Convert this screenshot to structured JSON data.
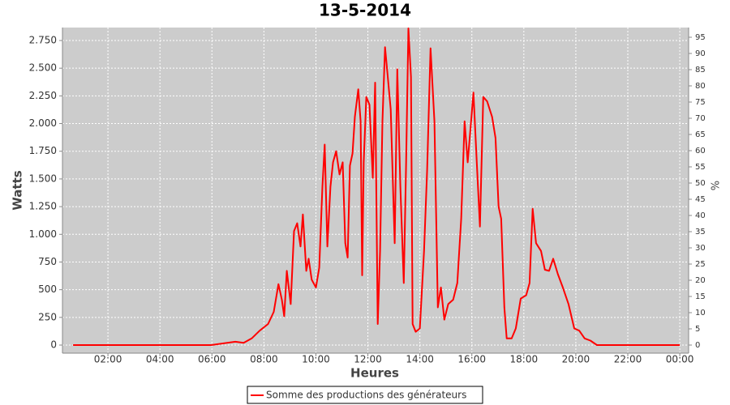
{
  "chart_data": {
    "type": "line",
    "title": "13-5-2014",
    "x_label": "Heures",
    "y_label": "Watts",
    "y2_label": "%",
    "x": [
      0.66,
      5.97,
      6.9,
      7.22,
      7.53,
      7.84,
      8.16,
      8.38,
      8.56,
      8.69,
      8.78,
      8.88,
      9.03,
      9.16,
      9.28,
      9.41,
      9.5,
      9.63,
      9.72,
      9.84,
      10.0,
      10.13,
      10.25,
      10.34,
      10.44,
      10.56,
      10.66,
      10.78,
      10.91,
      11.03,
      11.13,
      11.22,
      11.31,
      11.41,
      11.5,
      11.63,
      11.72,
      11.78,
      11.84,
      11.94,
      12.06,
      12.19,
      12.28,
      12.38,
      12.47,
      12.56,
      12.66,
      12.75,
      12.88,
      13.03,
      13.13,
      13.25,
      13.38,
      13.47,
      13.56,
      13.66,
      13.72,
      13.84,
      14.0,
      14.16,
      14.28,
      14.41,
      14.56,
      14.69,
      14.81,
      14.94,
      15.09,
      15.28,
      15.44,
      15.59,
      15.72,
      15.84,
      15.97,
      16.06,
      16.19,
      16.31,
      16.44,
      16.59,
      16.78,
      16.91,
      17.03,
      17.13,
      17.25,
      17.34,
      17.53,
      17.69,
      17.88,
      18.09,
      18.22,
      18.34,
      18.47,
      18.66,
      18.81,
      18.97,
      19.13,
      19.31,
      19.5,
      19.72,
      19.94,
      20.13,
      20.34,
      20.56,
      20.81,
      24.0
    ],
    "series": [
      {
        "name": "Somme des productions des  générateurs",
        "color": "#ff0000",
        "values": [
          0,
          0,
          30,
          20,
          60,
          130,
          190,
          300,
          550,
          410,
          260,
          670,
          370,
          1030,
          1100,
          890,
          1180,
          670,
          780,
          590,
          520,
          700,
          1430,
          1810,
          890,
          1430,
          1650,
          1750,
          1540,
          1650,
          920,
          790,
          1620,
          1730,
          2060,
          2310,
          2020,
          630,
          1650,
          2240,
          2170,
          1510,
          2370,
          190,
          850,
          2020,
          2690,
          2460,
          2130,
          920,
          2490,
          1430,
          560,
          1650,
          2860,
          2420,
          190,
          120,
          150,
          850,
          1580,
          2680,
          2020,
          340,
          520,
          230,
          370,
          410,
          560,
          1140,
          2020,
          1650,
          2020,
          2280,
          1650,
          1070,
          2240,
          2200,
          2060,
          1870,
          1250,
          1140,
          340,
          60,
          60,
          150,
          420,
          450,
          560,
          1230,
          920,
          850,
          680,
          670,
          780,
          640,
          520,
          370,
          150,
          130,
          60,
          40,
          0,
          0
        ]
      }
    ],
    "xlim": [
      0.25,
      24.34
    ],
    "xticks": [
      {
        "value": 2,
        "label": "02:00"
      },
      {
        "value": 4,
        "label": "04:00"
      },
      {
        "value": 6,
        "label": "06:00"
      },
      {
        "value": 8,
        "label": "08:00"
      },
      {
        "value": 10,
        "label": "10:00"
      },
      {
        "value": 12,
        "label": "12:00"
      },
      {
        "value": 14,
        "label": "14:00"
      },
      {
        "value": 16,
        "label": "16:00"
      },
      {
        "value": 18,
        "label": "18:00"
      },
      {
        "value": 20,
        "label": "20:00"
      },
      {
        "value": 22,
        "label": "22:00"
      },
      {
        "value": 24,
        "label": "00:00"
      }
    ],
    "ylim": [
      -73,
      2867
    ],
    "yticks": [
      0,
      250,
      500,
      750,
      {
        "value": 1000,
        "label": "1.000"
      },
      {
        "value": 1250,
        "label": "1.250"
      },
      {
        "value": 1500,
        "label": "1.500"
      },
      {
        "value": 1750,
        "label": "1.750"
      },
      {
        "value": 2000,
        "label": "2.000"
      },
      {
        "value": 2250,
        "label": "2.250"
      },
      {
        "value": 2500,
        "label": "2.500"
      },
      {
        "value": 2750,
        "label": "2.750"
      }
    ],
    "y2lim": [
      -2.5,
      98
    ],
    "y2ticks": [
      0,
      5,
      10,
      15,
      20,
      25,
      30,
      35,
      40,
      45,
      50,
      55,
      60,
      65,
      70,
      75,
      80,
      85,
      90,
      95
    ],
    "grid": true,
    "legend": "bottom"
  }
}
